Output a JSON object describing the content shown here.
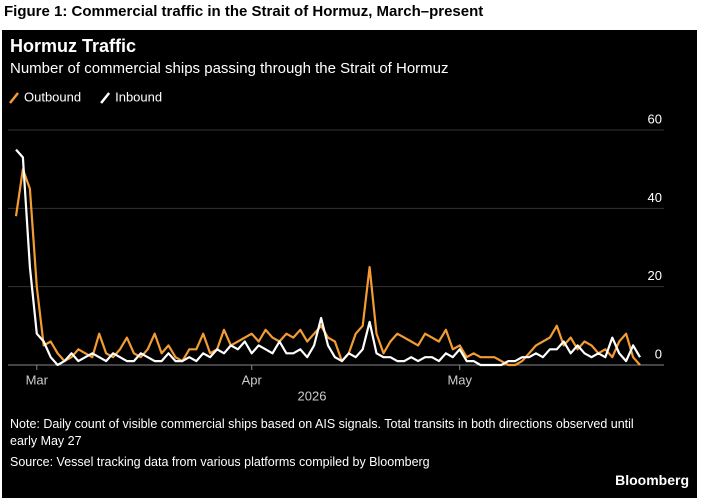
{
  "figure_caption": "Figure 1: Commercial traffic in the Strait of Hormuz, March–present",
  "chart_data": {
    "type": "line",
    "title": "Hormuz Traffic",
    "subtitle": "Number of commercial ships passing through the Strait of Hormuz",
    "x_label": "2026",
    "categories": [
      null,
      null,
      null,
      "Mar",
      null,
      null,
      null,
      null,
      null,
      null,
      null,
      null,
      null,
      null,
      null,
      null,
      null,
      null,
      null,
      null,
      null,
      null,
      null,
      null,
      null,
      null,
      null,
      null,
      null,
      null,
      null,
      null,
      null,
      null,
      "Apr",
      null,
      null,
      null,
      null,
      null,
      null,
      null,
      null,
      null,
      null,
      null,
      null,
      null,
      null,
      null,
      null,
      null,
      null,
      null,
      null,
      null,
      null,
      null,
      null,
      null,
      null,
      null,
      null,
      null,
      "May",
      null,
      null,
      null,
      null,
      null,
      null,
      null,
      null,
      null,
      null,
      null,
      null,
      null,
      null,
      null,
      null,
      null,
      null,
      null,
      null,
      null,
      null,
      null,
      null,
      null,
      null
    ],
    "series": [
      {
        "name": "Outbound",
        "color": "#f39c34",
        "values": [
          38,
          50,
          45,
          20,
          5,
          6,
          3,
          1,
          2,
          4,
          3,
          2,
          8,
          3,
          2,
          4,
          7,
          3,
          2,
          4,
          8,
          3,
          5,
          2,
          1,
          4,
          4,
          8,
          3,
          4,
          9,
          5,
          6,
          7,
          8,
          6,
          9,
          7,
          6,
          8,
          7,
          9,
          6,
          8,
          10,
          7,
          6,
          1,
          3,
          8,
          10,
          25,
          8,
          3,
          6,
          8,
          7,
          6,
          5,
          8,
          7,
          6,
          9,
          4,
          5,
          2,
          3,
          2,
          2,
          2,
          1,
          0,
          0,
          1,
          3,
          5,
          6,
          7,
          10,
          5,
          7,
          4,
          6,
          5,
          3,
          4,
          2,
          6,
          8,
          2,
          0
        ]
      },
      {
        "name": "Inbound",
        "color": "#ffffff",
        "values": [
          55,
          53,
          25,
          8,
          6,
          2,
          0,
          1,
          3,
          1,
          2,
          3,
          2,
          1,
          3,
          2,
          1,
          1,
          3,
          2,
          1,
          1,
          3,
          1,
          1,
          2,
          1,
          3,
          2,
          4,
          3,
          5,
          4,
          6,
          3,
          5,
          4,
          3,
          6,
          3,
          3,
          4,
          2,
          5,
          12,
          5,
          2,
          1,
          3,
          2,
          4,
          11,
          3,
          2,
          2,
          1,
          1,
          2,
          1,
          2,
          2,
          1,
          3,
          2,
          4,
          1,
          1,
          0,
          0,
          0,
          0,
          1,
          1,
          2,
          2,
          3,
          2,
          4,
          4,
          6,
          3,
          5,
          3,
          2,
          3,
          2,
          7,
          3,
          1,
          5,
          2
        ]
      }
    ],
    "ylim": [
      0,
      60
    ],
    "yticks": [
      0,
      20,
      40,
      60
    ],
    "grid": true,
    "note": "Note: Daily count of visible commercial ships based on AIS signals. Total transits in both directions observed until early May 27",
    "source": "Source: Vessel tracking data from various platforms compiled by Bloomberg",
    "brand": "Bloomberg"
  }
}
